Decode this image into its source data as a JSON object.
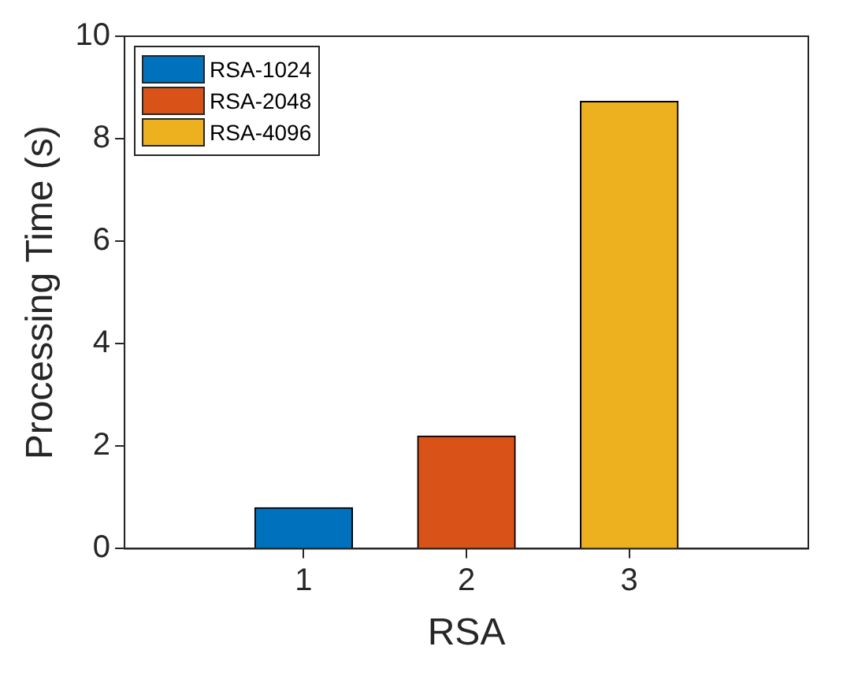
{
  "chart_data": {
    "type": "bar",
    "xlabel": "RSA",
    "ylabel": "Processing Time (s)",
    "xlim": [
      -0.1,
      4.1
    ],
    "xticks": [
      1,
      2,
      3
    ],
    "ylim": [
      0,
      10
    ],
    "yticks": [
      0,
      2,
      4,
      6,
      8,
      10
    ],
    "grid": false,
    "legend": "top left",
    "series": [
      {
        "name": "RSA-1024",
        "color": "#0072bd",
        "x": [
          1
        ],
        "values": [
          0.8
        ]
      },
      {
        "name": "RSA-2048",
        "color": "#d95319",
        "x": [
          2
        ],
        "values": [
          2.2
        ]
      },
      {
        "name": "RSA-4096",
        "color": "#edb120",
        "x": [
          3
        ],
        "values": [
          8.73
        ]
      }
    ]
  }
}
